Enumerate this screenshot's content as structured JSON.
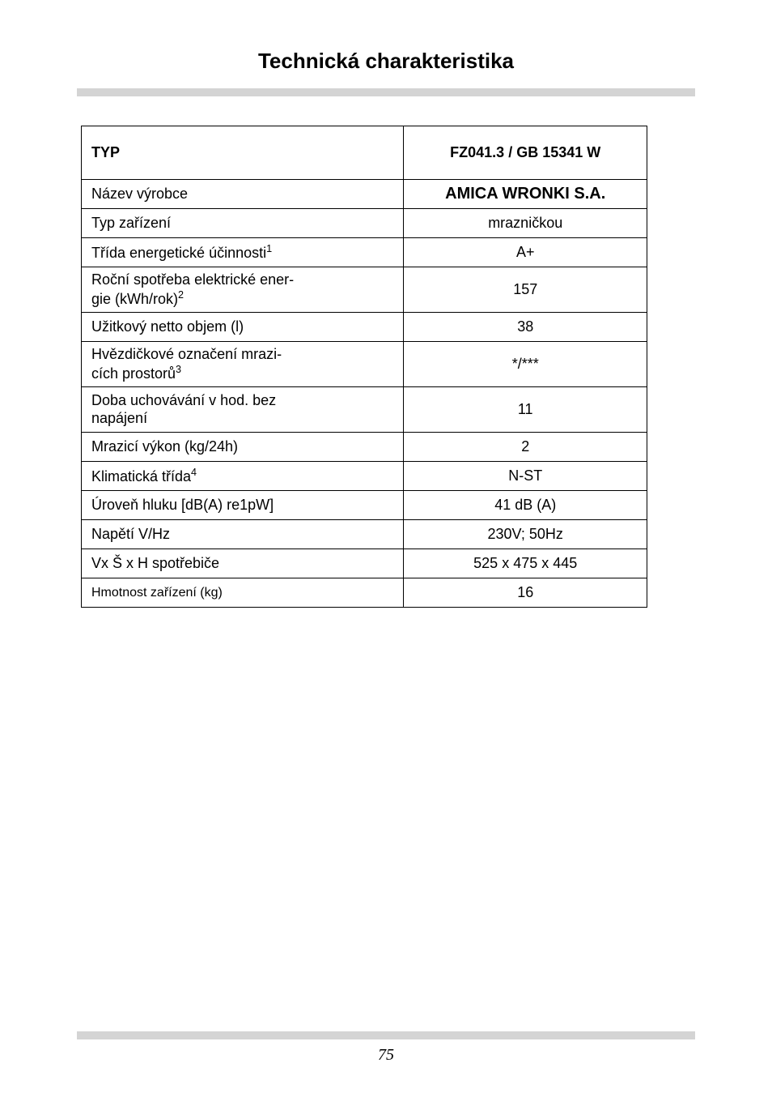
{
  "page": {
    "title": "Technická charakteristika",
    "page_number": "75"
  },
  "table": {
    "header": {
      "col1": "TYP",
      "col2": "FZ041.3 / GB 15341 W"
    },
    "rows": [
      {
        "label_html": "Název výrobce",
        "value": "AMICA WRONKI S.A.",
        "value_bold": true,
        "twoline": false
      },
      {
        "label_html": "Typ zařízení",
        "value": "mrazničkou",
        "value_bold": false,
        "twoline": false
      },
      {
        "label_html": "Třída energetické účinnosti<sup>1</sup>",
        "value": "A+",
        "value_bold": false,
        "twoline": false
      },
      {
        "label_html": "Roční spotřeba elektrické ener-<br>gie (kWh/rok)<sup>2</sup>",
        "value": "157",
        "value_bold": false,
        "twoline": true
      },
      {
        "label_html": "Užitkový netto objem (l)",
        "value": "38",
        "value_bold": false,
        "twoline": false
      },
      {
        "label_html": "Hvězdičkové označení mrazi-<br>cích prostorů<sup>3</sup>",
        "value": "*/***",
        "value_bold": false,
        "twoline": true
      },
      {
        "label_html": "Doba uchovávání v hod. bez<br>napájení",
        "value": "11",
        "value_bold": false,
        "twoline": true
      },
      {
        "label_html": "Mrazicí výkon (kg/24h)",
        "value": "2",
        "value_bold": false,
        "twoline": false
      },
      {
        "label_html": "Klimatická třída<sup>4</sup>",
        "value": "N-ST",
        "value_bold": false,
        "twoline": false
      },
      {
        "label_html": "Úroveň hluku [dB(A) re1pW]",
        "value": "41 dB (A)",
        "value_bold": false,
        "twoline": false
      },
      {
        "label_html": "Napětí V/Hz",
        "value": "230V; 50Hz",
        "value_bold": false,
        "twoline": false
      },
      {
        "label_html": "Vx Š x H spotřebiče",
        "value": "525 x 475 x 445",
        "value_bold": false,
        "twoline": false
      },
      {
        "label_html": "Hmotnost zařízení (kg)",
        "value": "16",
        "value_bold": false,
        "twoline": false,
        "label_small": true
      }
    ],
    "col_widths": {
      "col1": "57%",
      "col2": "43%"
    }
  },
  "colors": {
    "bar": "#d4d4d4",
    "border": "#000000",
    "background": "#ffffff",
    "text": "#000000"
  }
}
